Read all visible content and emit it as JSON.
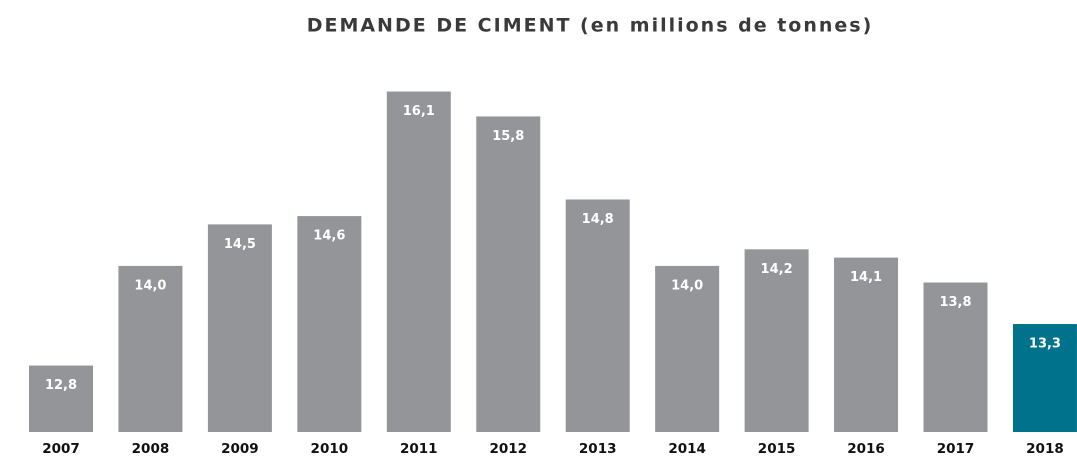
{
  "chart_data": {
    "type": "bar",
    "title": "DEMANDE DE CIMENT (en millions de tonnes)",
    "categories": [
      "2007",
      "2008",
      "2009",
      "2010",
      "2011",
      "2012",
      "2013",
      "2014",
      "2015",
      "2016",
      "2017",
      "2018"
    ],
    "values": [
      12.8,
      14.0,
      14.5,
      14.6,
      16.1,
      15.8,
      14.8,
      14.0,
      14.2,
      14.1,
      13.8,
      13.3
    ],
    "value_labels": [
      "12,8",
      "14,0",
      "14,5",
      "14,6",
      "16,1",
      "15,8",
      "14,8",
      "14,0",
      "14,2",
      "14,1",
      "13,8",
      "13,3"
    ],
    "colors": [
      "#939598",
      "#939598",
      "#939598",
      "#939598",
      "#939598",
      "#939598",
      "#939598",
      "#939598",
      "#939598",
      "#939598",
      "#939598",
      "#00728c"
    ],
    "ylim": [
      12,
      16.6
    ]
  }
}
